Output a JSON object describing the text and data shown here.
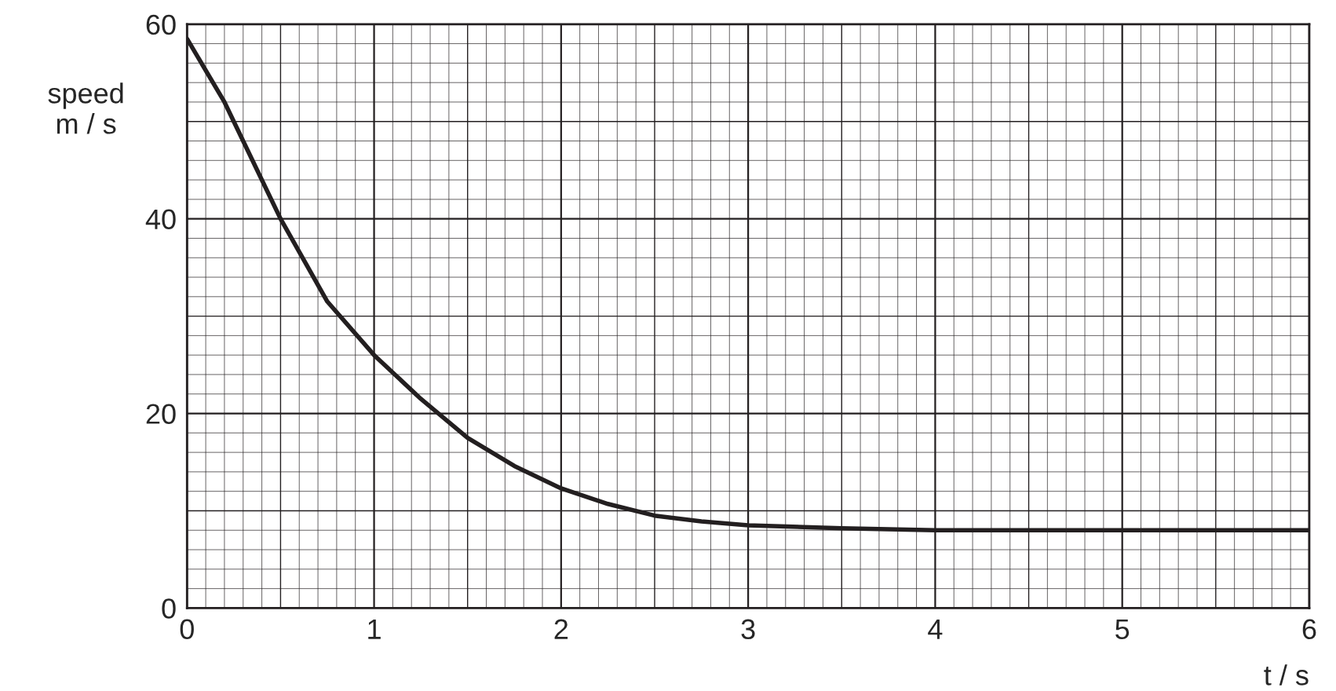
{
  "chart_data": {
    "type": "line",
    "xlabel": "t / s",
    "ylabel": "speed\nm / s",
    "x": [
      0,
      0.2,
      0.5,
      0.75,
      1,
      1.25,
      1.5,
      1.75,
      2,
      2.25,
      2.5,
      2.75,
      3,
      3.5,
      4,
      5,
      6
    ],
    "series": [
      {
        "color": "#231f20",
        "values": [
          58.5,
          52,
          40,
          31.5,
          26,
          21.5,
          17.5,
          14.6,
          12.3,
          10.7,
          9.5,
          8.9,
          8.5,
          8.2,
          8,
          8,
          8
        ]
      }
    ],
    "xlim": [
      0,
      6
    ],
    "ylim": [
      0,
      60
    ],
    "xticks": [
      0,
      1,
      2,
      3,
      4,
      5,
      6
    ],
    "yticks": [
      0,
      20,
      40,
      60
    ],
    "grid": true,
    "marker": "none",
    "line_style": "solid",
    "legend": false
  }
}
